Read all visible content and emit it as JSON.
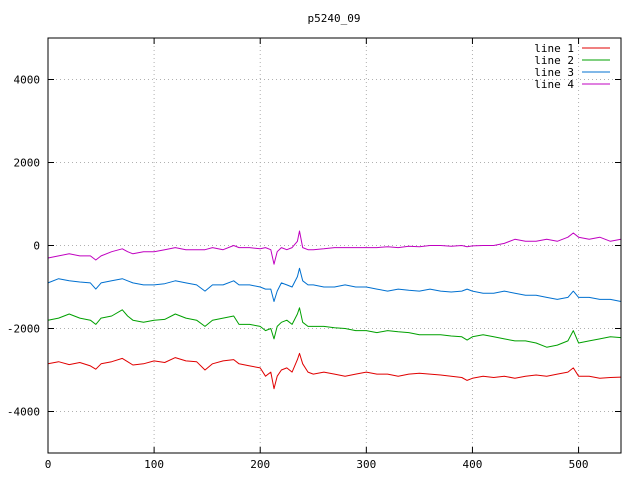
{
  "chart_data": {
    "type": "line",
    "title": "p5240_09",
    "xlabel": "",
    "ylabel": "",
    "xlim": [
      0,
      540
    ],
    "ylim": [
      -5000,
      5000
    ],
    "xticks": [
      0,
      100,
      200,
      300,
      400,
      500
    ],
    "yticks": [
      -4000,
      -2000,
      0,
      2000,
      4000
    ],
    "grid": true,
    "legend_position": "top-right",
    "series": [
      {
        "name": "line 1",
        "color": "#e00000",
        "x": [
          0,
          10,
          20,
          30,
          40,
          45,
          50,
          60,
          70,
          75,
          80,
          90,
          100,
          110,
          120,
          130,
          140,
          148,
          155,
          165,
          175,
          180,
          190,
          200,
          205,
          210,
          213,
          216,
          220,
          225,
          230,
          235,
          237,
          240,
          245,
          250,
          260,
          270,
          280,
          290,
          300,
          310,
          320,
          330,
          340,
          350,
          360,
          370,
          380,
          390,
          395,
          400,
          410,
          420,
          430,
          440,
          450,
          460,
          470,
          480,
          490,
          495,
          500,
          510,
          520,
          530,
          540
        ],
        "y": [
          -2850,
          -2800,
          -2870,
          -2820,
          -2900,
          -2980,
          -2850,
          -2800,
          -2720,
          -2800,
          -2880,
          -2850,
          -2780,
          -2820,
          -2700,
          -2780,
          -2800,
          -3000,
          -2850,
          -2780,
          -2750,
          -2850,
          -2900,
          -2950,
          -3150,
          -3050,
          -3450,
          -3150,
          -3000,
          -2950,
          -3050,
          -2750,
          -2600,
          -2850,
          -3050,
          -3100,
          -3050,
          -3100,
          -3150,
          -3100,
          -3050,
          -3100,
          -3100,
          -3150,
          -3100,
          -3080,
          -3100,
          -3120,
          -3150,
          -3180,
          -3250,
          -3200,
          -3150,
          -3180,
          -3150,
          -3200,
          -3150,
          -3120,
          -3150,
          -3100,
          -3050,
          -2950,
          -3150,
          -3150,
          -3200,
          -3180,
          -3170
        ]
      },
      {
        "name": "line 2",
        "color": "#00a000",
        "x": [
          0,
          10,
          20,
          30,
          40,
          45,
          50,
          60,
          70,
          75,
          80,
          90,
          100,
          110,
          120,
          130,
          140,
          148,
          155,
          165,
          175,
          180,
          190,
          200,
          205,
          210,
          213,
          216,
          220,
          225,
          230,
          235,
          237,
          240,
          245,
          250,
          260,
          270,
          280,
          290,
          300,
          310,
          320,
          330,
          340,
          350,
          360,
          370,
          380,
          390,
          395,
          400,
          410,
          420,
          430,
          440,
          450,
          460,
          470,
          480,
          490,
          495,
          500,
          510,
          520,
          530,
          540
        ],
        "y": [
          -1800,
          -1750,
          -1650,
          -1750,
          -1800,
          -1900,
          -1750,
          -1700,
          -1550,
          -1700,
          -1800,
          -1850,
          -1800,
          -1780,
          -1650,
          -1750,
          -1800,
          -1950,
          -1800,
          -1750,
          -1700,
          -1900,
          -1900,
          -1950,
          -2050,
          -2000,
          -2250,
          -1950,
          -1850,
          -1800,
          -1900,
          -1650,
          -1500,
          -1850,
          -1950,
          -1950,
          -1950,
          -1980,
          -2000,
          -2050,
          -2050,
          -2100,
          -2050,
          -2080,
          -2100,
          -2150,
          -2150,
          -2150,
          -2180,
          -2200,
          -2280,
          -2200,
          -2150,
          -2200,
          -2250,
          -2300,
          -2300,
          -2350,
          -2450,
          -2400,
          -2300,
          -2050,
          -2350,
          -2300,
          -2250,
          -2200,
          -2220
        ]
      },
      {
        "name": "line 3",
        "color": "#0070d0",
        "x": [
          0,
          10,
          20,
          30,
          40,
          45,
          50,
          60,
          70,
          75,
          80,
          90,
          100,
          110,
          120,
          130,
          140,
          148,
          155,
          165,
          175,
          180,
          190,
          200,
          205,
          210,
          213,
          216,
          220,
          225,
          230,
          235,
          237,
          240,
          245,
          250,
          260,
          270,
          280,
          290,
          300,
          310,
          320,
          330,
          340,
          350,
          360,
          370,
          380,
          390,
          395,
          400,
          410,
          420,
          430,
          440,
          450,
          460,
          470,
          480,
          490,
          495,
          500,
          510,
          520,
          530,
          540
        ],
        "y": [
          -900,
          -800,
          -850,
          -880,
          -900,
          -1050,
          -900,
          -850,
          -800,
          -850,
          -900,
          -950,
          -950,
          -920,
          -850,
          -900,
          -950,
          -1100,
          -950,
          -950,
          -850,
          -950,
          -950,
          -1000,
          -1050,
          -1050,
          -1350,
          -1100,
          -900,
          -950,
          -1000,
          -750,
          -550,
          -850,
          -950,
          -950,
          -1000,
          -1000,
          -950,
          -1000,
          -1000,
          -1050,
          -1100,
          -1050,
          -1080,
          -1100,
          -1050,
          -1100,
          -1120,
          -1100,
          -1050,
          -1100,
          -1150,
          -1150,
          -1100,
          -1150,
          -1200,
          -1200,
          -1250,
          -1300,
          -1250,
          -1100,
          -1250,
          -1250,
          -1300,
          -1300,
          -1350
        ]
      },
      {
        "name": "line 4",
        "color": "#c000c0",
        "x": [
          0,
          10,
          20,
          30,
          40,
          45,
          50,
          60,
          70,
          75,
          80,
          90,
          100,
          110,
          120,
          130,
          140,
          148,
          155,
          165,
          175,
          180,
          190,
          200,
          205,
          210,
          213,
          216,
          220,
          225,
          230,
          235,
          237,
          240,
          245,
          250,
          260,
          270,
          280,
          290,
          300,
          310,
          320,
          330,
          340,
          350,
          360,
          370,
          380,
          390,
          395,
          400,
          410,
          420,
          430,
          440,
          450,
          460,
          470,
          480,
          490,
          495,
          500,
          510,
          520,
          530,
          540
        ],
        "y": [
          -300,
          -250,
          -200,
          -250,
          -250,
          -350,
          -250,
          -150,
          -80,
          -150,
          -200,
          -150,
          -150,
          -100,
          -50,
          -100,
          -100,
          -100,
          -50,
          -100,
          0,
          -50,
          -50,
          -80,
          -50,
          -100,
          -450,
          -150,
          -50,
          -100,
          -50,
          100,
          350,
          -50,
          -100,
          -100,
          -80,
          -50,
          -50,
          -50,
          -50,
          -50,
          -30,
          -50,
          -20,
          -30,
          0,
          0,
          -20,
          0,
          -30,
          -10,
          0,
          0,
          50,
          150,
          100,
          100,
          150,
          100,
          200,
          300,
          200,
          150,
          200,
          100,
          150
        ]
      }
    ]
  }
}
